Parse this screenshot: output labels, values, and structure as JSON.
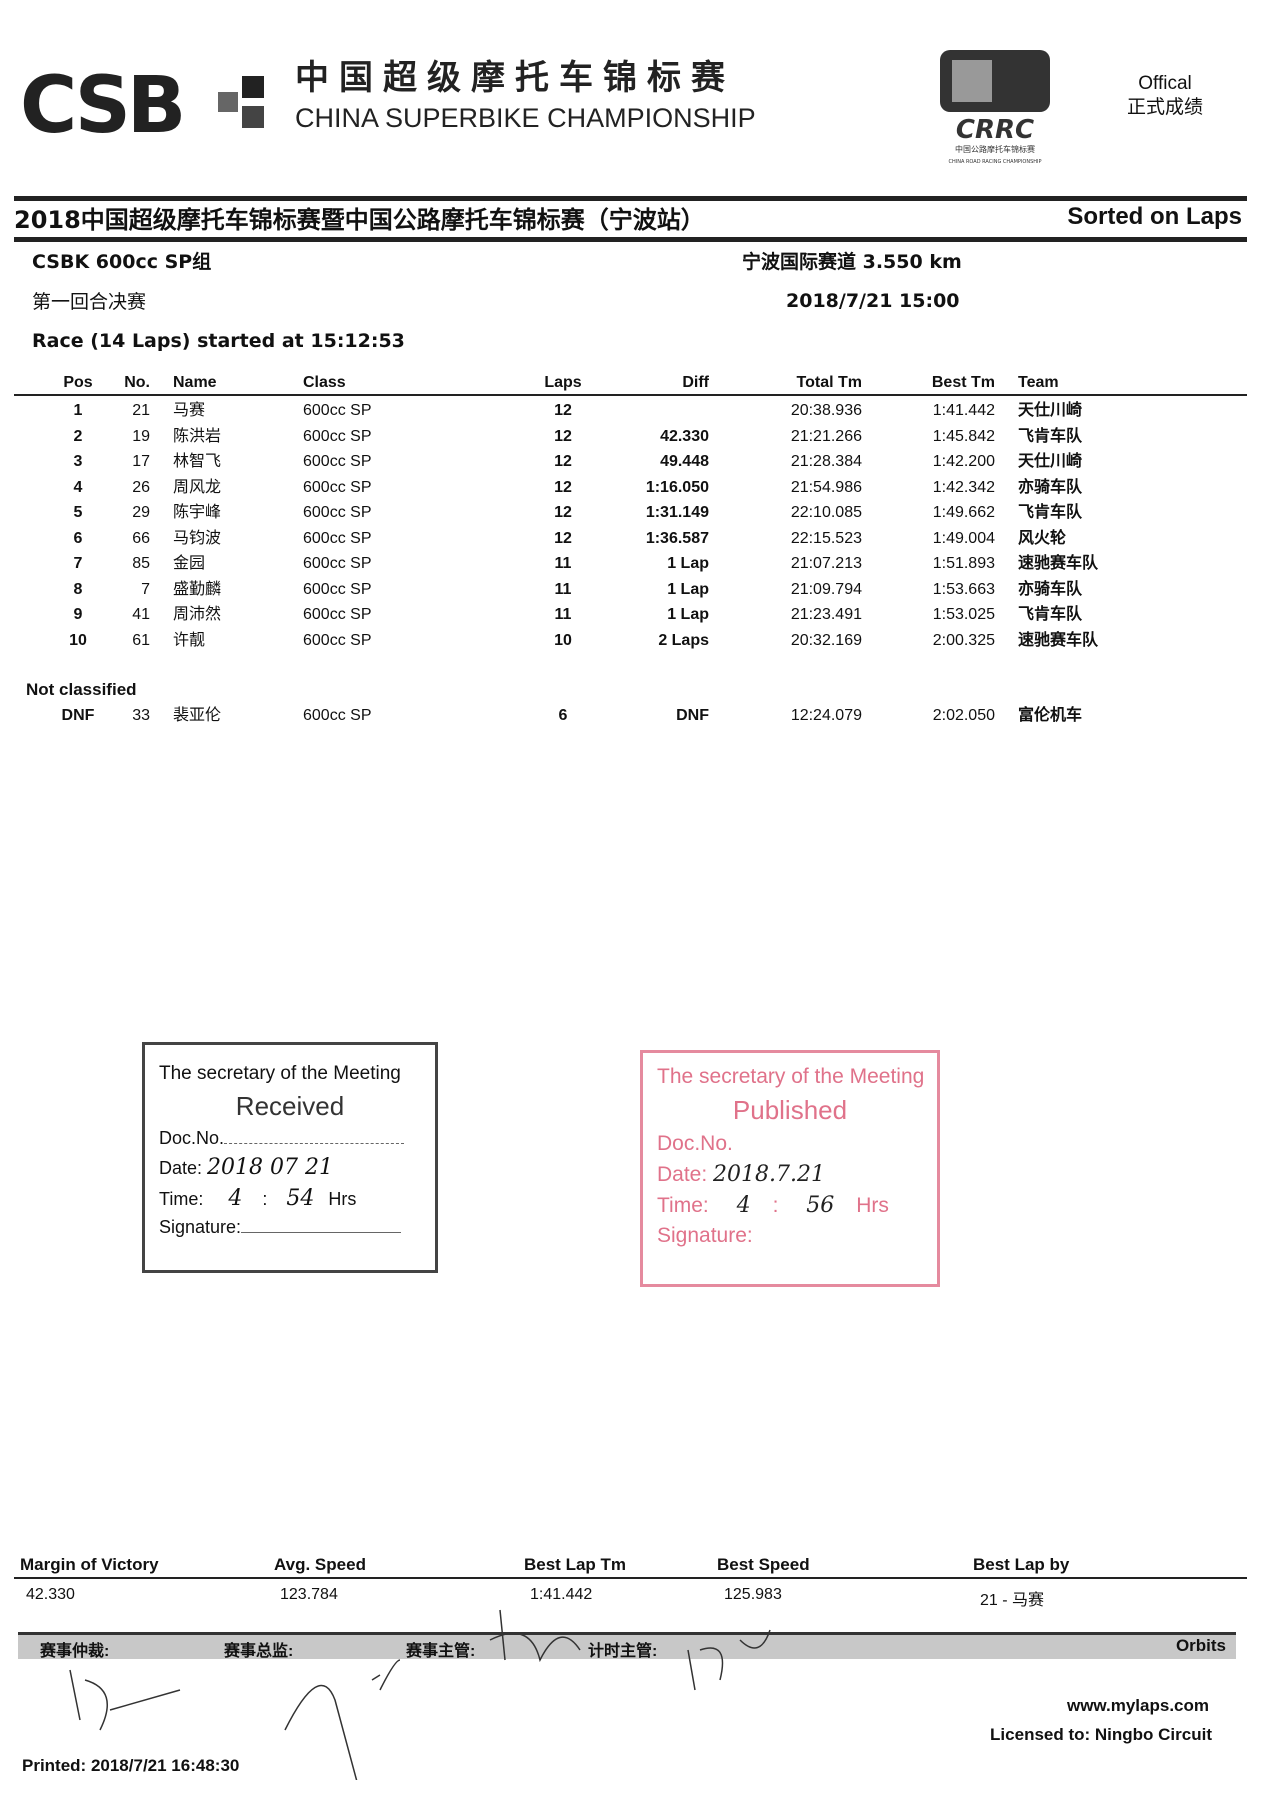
{
  "header": {
    "logo_text": "CSB",
    "title_cn": "中国超级摩托车锦标赛",
    "title_en": "CHINA SUPERBIKE CHAMPIONSHIP",
    "crrc_logo_text": "CRRC",
    "crrc_sub_cn": "中国公路摩托车锦标赛",
    "crrc_sub_en": "CHINA ROAD RACING CHAMPIONSHIP",
    "official_en": "Offical",
    "official_cn": "正式成绩"
  },
  "event": {
    "title": "2018中国超级摩托车锦标赛暨中国公路摩托车锦标赛（宁波站）",
    "sort": "Sorted on Laps",
    "class_group": "CSBK 600cc SP组",
    "track": "宁波国际赛道 3.550 km",
    "session": "第一回合决赛",
    "datetime": "2018/7/21 15:00",
    "race_info": "Race (14 Laps) started at 15:12:53"
  },
  "table": {
    "columns": [
      "Pos",
      "No.",
      "Name",
      "Class",
      "Laps",
      "Diff",
      "Total Tm",
      "Best Tm",
      "Team"
    ],
    "rows": [
      [
        "1",
        "21",
        "马赛",
        "600cc SP",
        "12",
        "",
        "20:38.936",
        "1:41.442",
        "天仕川崎"
      ],
      [
        "2",
        "19",
        "陈洪岩",
        "600cc SP",
        "12",
        "42.330",
        "21:21.266",
        "1:45.842",
        "飞肯车队"
      ],
      [
        "3",
        "17",
        "林智飞",
        "600cc SP",
        "12",
        "49.448",
        "21:28.384",
        "1:42.200",
        "天仕川崎"
      ],
      [
        "4",
        "26",
        "周风龙",
        "600cc SP",
        "12",
        "1:16.050",
        "21:54.986",
        "1:42.342",
        "亦骑车队"
      ],
      [
        "5",
        "29",
        "陈宇峰",
        "600cc SP",
        "12",
        "1:31.149",
        "22:10.085",
        "1:49.662",
        "飞肯车队"
      ],
      [
        "6",
        "66",
        "马钧波",
        "600cc SP",
        "12",
        "1:36.587",
        "22:15.523",
        "1:49.004",
        "风火轮"
      ],
      [
        "7",
        "85",
        "金园",
        "600cc SP",
        "11",
        "1 Lap",
        "21:07.213",
        "1:51.893",
        "速驰赛车队"
      ],
      [
        "8",
        "7",
        "盛勤麟",
        "600cc SP",
        "11",
        "1 Lap",
        "21:09.794",
        "1:53.663",
        "亦骑车队"
      ],
      [
        "9",
        "41",
        "周沛然",
        "600cc SP",
        "11",
        "1 Lap",
        "21:23.491",
        "1:53.025",
        "飞肯车队"
      ],
      [
        "10",
        "61",
        "许靓",
        "600cc SP",
        "10",
        "2 Laps",
        "20:32.169",
        "2:00.325",
        "速驰赛车队"
      ]
    ],
    "not_classified_label": "Not classified",
    "nc_rows": [
      [
        "DNF",
        "33",
        "裴亚伦",
        "600cc SP",
        "6",
        "DNF",
        "12:24.079",
        "2:02.050",
        "富伦机车"
      ]
    ]
  },
  "stamp_received": {
    "title": "The secretary of the Meeting",
    "status": "Received",
    "doc_label": "Doc.No.",
    "date_label": "Date:",
    "date_value": "2018  07  21",
    "time_label": "Time:",
    "time_h": "4",
    "time_m": "54",
    "hrs": "Hrs",
    "signature_label": "Signature:"
  },
  "stamp_published": {
    "title": "The secretary of the Meeting",
    "status": "Published",
    "doc_label": "Doc.No.",
    "date_label": "Date:",
    "date_value": "2018.7.21",
    "time_label": "Time:",
    "time_h": "4",
    "time_m": "56",
    "hrs": "Hrs",
    "signature_label": "Signature:",
    "color": "#e0728a"
  },
  "summary": {
    "labels": [
      "Margin of Victory",
      "Avg. Speed",
      "Best Lap Tm",
      "Best Speed",
      "Best Lap by"
    ],
    "values": [
      "42.330",
      "123.784",
      "1:41.442",
      "125.983",
      "21 - 马赛"
    ]
  },
  "officials": {
    "labels": [
      "赛事仲裁:",
      "赛事总监:",
      "赛事主管:",
      "计时主管:"
    ],
    "brand": "Orbits"
  },
  "footer": {
    "website": "www.mylaps.com",
    "licensed": "Licensed to:  Ningbo Circuit",
    "printed": "Printed: 2018/7/21 16:48:30"
  }
}
